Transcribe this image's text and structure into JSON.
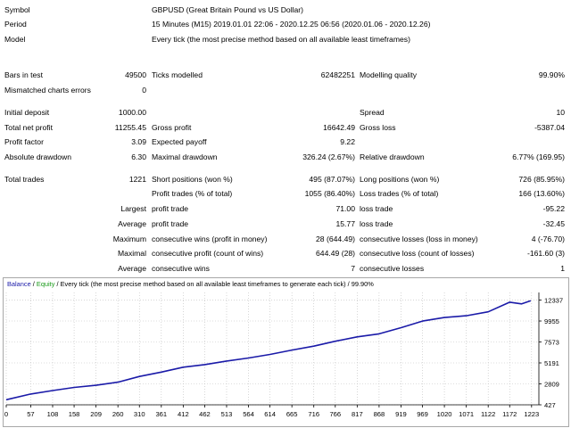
{
  "header": {
    "symbol_label": "Symbol",
    "symbol_value": "GBPUSD (Great Britain Pound vs US Dollar)",
    "period_label": "Period",
    "period_value": "15 Minutes (M15) 2019.01.01 22:06 - 2020.12.25 06:56 (2020.01.06 - 2020.12.26)",
    "model_label": "Model",
    "model_value": "Every tick (the most precise method based on all available least timeframes)"
  },
  "stats": {
    "bars_in_test": {
      "label": "Bars in test",
      "value": "49500"
    },
    "ticks_modelled": {
      "label": "Ticks modelled",
      "value": "62482251"
    },
    "modelling_quality": {
      "label": "Modelling quality",
      "value": "99.90%"
    },
    "mismatched_errors": {
      "label": "Mismatched charts errors",
      "value": "0"
    },
    "initial_deposit": {
      "label": "Initial deposit",
      "value": "1000.00"
    },
    "spread": {
      "label": "Spread",
      "value": "10"
    },
    "total_net_profit": {
      "label": "Total net profit",
      "value": "11255.45"
    },
    "gross_profit": {
      "label": "Gross profit",
      "value": "16642.49"
    },
    "gross_loss": {
      "label": "Gross loss",
      "value": "-5387.04"
    },
    "profit_factor": {
      "label": "Profit factor",
      "value": "3.09"
    },
    "expected_payoff": {
      "label": "Expected payoff",
      "value": "9.22"
    },
    "absolute_drawdown": {
      "label": "Absolute drawdown",
      "value": "6.30"
    },
    "maximal_drawdown": {
      "label": "Maximal drawdown",
      "value": "326.24 (2.67%)"
    },
    "relative_drawdown": {
      "label": "Relative drawdown",
      "value": "6.77% (169.95)"
    },
    "total_trades": {
      "label": "Total trades",
      "value": "1221"
    },
    "short_positions": {
      "label": "Short positions (won %)",
      "value": "495 (87.07%)"
    },
    "long_positions": {
      "label": "Long positions (won %)",
      "value": "726 (85.95%)"
    },
    "profit_trades": {
      "label": "Profit trades (% of total)",
      "value": "1055 (86.40%)"
    },
    "loss_trades": {
      "label": "Loss trades (% of total)",
      "value": "166 (13.60%)"
    },
    "largest_label": "Largest",
    "largest_profit": {
      "label": "profit trade",
      "value": "71.00"
    },
    "largest_loss": {
      "label": "loss trade",
      "value": "-95.22"
    },
    "average_label": "Average",
    "average_profit": {
      "label": "profit trade",
      "value": "15.77"
    },
    "average_loss": {
      "label": "loss trade",
      "value": "-32.45"
    },
    "maximum_label": "Maximum",
    "max_cons_wins": {
      "label": "consecutive wins (profit in money)",
      "value": "28 (644.49)"
    },
    "max_cons_losses": {
      "label": "consecutive losses (loss in money)",
      "value": "4 (-76.70)"
    },
    "maximal_label": "Maximal",
    "maximal_cons_profit": {
      "label": "consecutive profit (count of wins)",
      "value": "644.49 (28)"
    },
    "maximal_cons_loss": {
      "label": "consecutive loss (count of losses)",
      "value": "-161.60 (3)"
    },
    "average2_label": "Average",
    "avg_cons_wins": {
      "label": "consecutive wins",
      "value": "7"
    },
    "avg_cons_losses": {
      "label": "consecutive losses",
      "value": "1"
    }
  },
  "chart_header": {
    "balance": "Balance",
    "sep1": " / ",
    "equity": "Equity",
    "rest": " / Every tick (the most precise method based on all available least timeframes to generate each tick) / 99.90%"
  },
  "colors": {
    "balance": "#1a1aa8",
    "equity": "#1a9a1a",
    "grid": "#bdbdbd"
  },
  "chart_data": {
    "type": "line",
    "x_ticks": [
      "0",
      "57",
      "108",
      "158",
      "209",
      "260",
      "310",
      "361",
      "412",
      "462",
      "513",
      "564",
      "614",
      "665",
      "716",
      "766",
      "817",
      "868",
      "919",
      "969",
      "1020",
      "1071",
      "1122",
      "1172",
      "1223"
    ],
    "y_ticks": [
      "427",
      "2809",
      "5191",
      "7573",
      "9955",
      "12337"
    ],
    "xlim": [
      0,
      1240
    ],
    "ylim": [
      427,
      13200
    ],
    "series": [
      {
        "name": "Balance",
        "x": [
          0,
          57,
          108,
          158,
          209,
          260,
          310,
          361,
          412,
          462,
          513,
          564,
          614,
          665,
          716,
          766,
          817,
          868,
          919,
          969,
          1020,
          1071,
          1122,
          1172,
          1200,
          1221
        ],
        "y": [
          1000,
          1650,
          2050,
          2400,
          2650,
          3000,
          3650,
          4150,
          4700,
          5000,
          5400,
          5750,
          6150,
          6650,
          7100,
          7650,
          8150,
          8500,
          9200,
          9950,
          10350,
          10550,
          11000,
          12100,
          11900,
          12255
        ]
      }
    ]
  }
}
